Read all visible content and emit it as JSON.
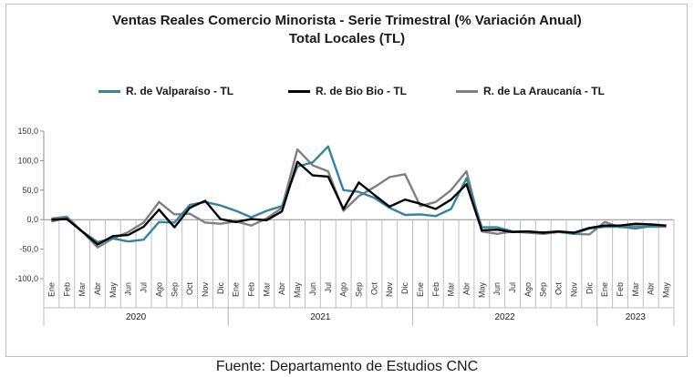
{
  "chart_data": {
    "type": "line",
    "title": "Ventas Reales Comercio Minorista - Serie Trimestral (% Variación Anual)",
    "subtitle": "Total Locales (TL)",
    "source": "Fuente: Departamento de Estudios CNC",
    "ylim": [
      -100,
      150
    ],
    "yticks": [
      "150,0",
      "100,0",
      "50,0",
      "0,0",
      "-50,0",
      "-100,0"
    ],
    "ytick_values": [
      150,
      100,
      50,
      0,
      -50,
      -100
    ],
    "legend_position": "top",
    "grid": false,
    "categories": [
      "Ene",
      "Feb",
      "Mar",
      "Abr",
      "May",
      "Jun",
      "Jul",
      "Ago",
      "Sep",
      "Oct",
      "Nov",
      "Dic",
      "Ene",
      "Feb",
      "Mar",
      "Abr",
      "May",
      "Jun",
      "Jul",
      "Ago",
      "Sep",
      "Oct",
      "Nov",
      "Dic",
      "Ene",
      "Feb",
      "Mar",
      "Abr",
      "May",
      "Jun",
      "Jul",
      "Ago",
      "Sep",
      "Oct",
      "Nov",
      "Dic",
      "Ene",
      "Feb",
      "Mar",
      "Abr",
      "May"
    ],
    "years": [
      {
        "label": "2020",
        "start": 0,
        "count": 12
      },
      {
        "label": "2021",
        "start": 12,
        "count": 12
      },
      {
        "label": "2022",
        "start": 24,
        "count": 12
      },
      {
        "label": "2023",
        "start": 36,
        "count": 5
      }
    ],
    "series": [
      {
        "name": "R. de Valparaíso - TL",
        "color": "#31859c",
        "values": [
          -3,
          3,
          -20,
          -38,
          -32,
          -37,
          -34,
          -4,
          -5,
          25,
          30,
          24,
          15,
          4,
          15,
          23,
          90,
          97,
          124,
          50,
          47,
          37,
          20,
          8,
          9,
          6,
          18,
          70,
          -13,
          -13,
          -20,
          -20,
          -22,
          -20,
          -24,
          -15,
          -12,
          -12,
          -15,
          -11,
          -10
        ]
      },
      {
        "name": "R. de Bio Bio - TL",
        "color": "#000000",
        "values": [
          0,
          1,
          -20,
          -42,
          -28,
          -26,
          -12,
          17,
          -13,
          20,
          32,
          1,
          -4,
          1,
          -1,
          14,
          98,
          75,
          73,
          18,
          63,
          42,
          22,
          34,
          27,
          18,
          34,
          60,
          -18,
          -17,
          -21,
          -20,
          -22,
          -20,
          -22,
          -14,
          -10,
          -10,
          -7,
          -8,
          -10
        ]
      },
      {
        "name": "R. de La Araucanía - TL",
        "color": "#808080",
        "values": [
          2,
          5,
          -20,
          -47,
          -32,
          -21,
          -5,
          30,
          9,
          10,
          -5,
          -7,
          -3,
          -10,
          2,
          20,
          119,
          92,
          82,
          15,
          40,
          55,
          72,
          77,
          23,
          30,
          50,
          82,
          -20,
          -24,
          -20,
          -22,
          -24,
          -21,
          -24,
          -25,
          -4,
          -13,
          -11,
          -12,
          -12
        ]
      }
    ]
  }
}
